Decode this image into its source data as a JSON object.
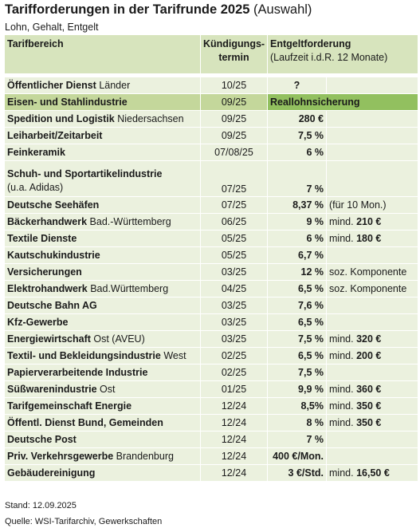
{
  "title": "Tarifforderungen in der Tarifrunde 2025",
  "title_suffix": "(Auswahl)",
  "subtitle": "Lohn, Gehalt, Entgelt",
  "headers": {
    "col1": "Tarifbereich",
    "col2_line1": "Kündigungs-",
    "col2_line2": "termin",
    "col3_line1": "Entgeltforderung",
    "col3_line2": "(Laufzeit i.d.R. 12 Monate)"
  },
  "rows": [
    {
      "name": "Öffentlicher Dienst",
      "region": "Länder",
      "termin": "10/25",
      "value": "?",
      "extra": "",
      "extra_bold": ""
    },
    {
      "name": "Eisen- und Stahlindustrie",
      "region": "",
      "termin": "09/25",
      "value": "Reallohnsicherung",
      "extra": "",
      "extra_bold": ""
    },
    {
      "name": "Spedition und Logistik",
      "region": "Niedersachsen",
      "termin": "09/25",
      "value": "280 €",
      "extra": "",
      "extra_bold": ""
    },
    {
      "name": "Leiharbeit/Zeitarbeit",
      "region": "",
      "termin": "09/25",
      "value": "7,5 %",
      "extra": "",
      "extra_bold": ""
    },
    {
      "name": "Feinkeramik",
      "region": "",
      "termin": "07/08/25",
      "value": "6 %",
      "extra": "",
      "extra_bold": ""
    },
    {
      "name": "Schuh- und Sportartikelindustrie",
      "region": "(u.a. Adidas)",
      "termin": "07/25",
      "value": "7 %",
      "extra": "",
      "extra_bold": ""
    },
    {
      "name": "Deutsche Seehäfen",
      "region": "",
      "termin": "07/25",
      "value": "8,37 %",
      "extra": "(für 10 Mon.)",
      "extra_bold": ""
    },
    {
      "name": "Bäckerhandwerk",
      "region": "Bad.-Württemberg",
      "termin": "06/25",
      "value": "9 %",
      "extra": "mind.",
      "extra_bold": "210 €"
    },
    {
      "name": "Textile Dienste",
      "region": "",
      "termin": "05/25",
      "value": "6 %",
      "extra": "mind.",
      "extra_bold": "180 €"
    },
    {
      "name": "Kautschukindustrie",
      "region": "",
      "termin": "05/25",
      "value": "6,7 %",
      "extra": "",
      "extra_bold": ""
    },
    {
      "name": "Versicherungen",
      "region": "",
      "termin": "03/25",
      "value": "12 %",
      "extra": "soz. Komponente",
      "extra_bold": ""
    },
    {
      "name": "Elektrohandwerk",
      "region": "Bad.Württemberg",
      "termin": "04/25",
      "value": "6,5 %",
      "extra": "soz. Komponente",
      "extra_bold": ""
    },
    {
      "name": "Deutsche Bahn AG",
      "region": "",
      "termin": "03/25",
      "value": "7,6 %",
      "extra": "",
      "extra_bold": ""
    },
    {
      "name": "Kfz-Gewerbe",
      "region": "",
      "termin": "03/25",
      "value": "6,5 %",
      "extra": "",
      "extra_bold": ""
    },
    {
      "name": "Energiewirtschaft",
      "region": "Ost (AVEU)",
      "termin": "03/25",
      "value": "7,5 %",
      "extra": "mind.",
      "extra_bold": "320 €"
    },
    {
      "name": "Textil- und Bekleidungsindustrie",
      "region": "West",
      "termin": "02/25",
      "value": "6,5 %",
      "extra": "mind.",
      "extra_bold": "200 €"
    },
    {
      "name": "Papierverarbeitende Industrie",
      "region": "",
      "termin": "02/25",
      "value": "7,5 %",
      "extra": "",
      "extra_bold": ""
    },
    {
      "name": "Süßwarenindustrie",
      "region": "Ost",
      "termin": "01/25",
      "value": "9,9 %",
      "extra": "mind.",
      "extra_bold": "360 €"
    },
    {
      "name": "Tarifgemeinschaft Energie",
      "region": "",
      "termin": "12/24",
      "value": "8,5%",
      "extra": "mind.",
      "extra_bold": "350 €"
    },
    {
      "name": "Öffentl. Dienst Bund, Gemeinden",
      "region": "",
      "termin": "12/24",
      "value": "8 %",
      "extra": "mind.",
      "extra_bold": "350 €"
    },
    {
      "name": "Deutsche Post",
      "region": "",
      "termin": "12/24",
      "value": "7 %",
      "extra": "",
      "extra_bold": ""
    },
    {
      "name": "Priv. Verkehrsgewerbe",
      "region": "Brandenburg",
      "termin": "12/24",
      "value": "400 €/Mon.",
      "extra": "",
      "extra_bold": ""
    },
    {
      "name": "Gebäudereinigung",
      "region": "",
      "termin": "12/24",
      "value": "3 €/Std.",
      "extra": "mind.",
      "extra_bold": "16,50 €"
    }
  ],
  "footer": {
    "stand": "Stand: 12.09.2025",
    "quelle": "Quelle: WSI-Tarifarchiv, Gewerkschaften"
  },
  "colors": {
    "header_bg": "#d7e4bd",
    "row_bg": "#ebf1de",
    "highlight_bg": "#c4d79b",
    "highlight_value_bg": "#92c05f"
  }
}
